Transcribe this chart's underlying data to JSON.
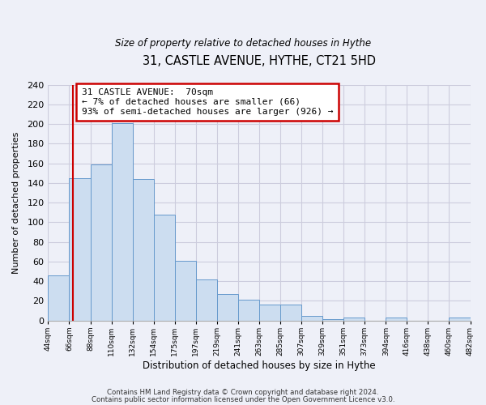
{
  "title": "31, CASTLE AVENUE, HYTHE, CT21 5HD",
  "subtitle": "Size of property relative to detached houses in Hythe",
  "xlabel": "Distribution of detached houses by size in Hythe",
  "ylabel": "Number of detached properties",
  "bin_labels": [
    "44sqm",
    "66sqm",
    "88sqm",
    "110sqm",
    "132sqm",
    "154sqm",
    "175sqm",
    "197sqm",
    "219sqm",
    "241sqm",
    "263sqm",
    "285sqm",
    "307sqm",
    "329sqm",
    "351sqm",
    "373sqm",
    "394sqm",
    "416sqm",
    "438sqm",
    "460sqm",
    "482sqm"
  ],
  "bar_heights": [
    46,
    145,
    159,
    201,
    144,
    108,
    61,
    42,
    27,
    21,
    16,
    16,
    5,
    1,
    3,
    0,
    3,
    0,
    0,
    3
  ],
  "bar_color": "#ccddf0",
  "bar_edge_color": "#6699cc",
  "vline_color": "#cc0000",
  "annotation_title": "31 CASTLE AVENUE:  70sqm",
  "annotation_line1": "← 7% of detached houses are smaller (66)",
  "annotation_line2": "93% of semi-detached houses are larger (926) →",
  "annotation_box_color": "#ffffff",
  "annotation_box_edge": "#cc0000",
  "ylim": [
    0,
    240
  ],
  "yticks": [
    0,
    20,
    40,
    60,
    80,
    100,
    120,
    140,
    160,
    180,
    200,
    220,
    240
  ],
  "footer1": "Contains HM Land Registry data © Crown copyright and database right 2024.",
  "footer2": "Contains public sector information licensed under the Open Government Licence v3.0.",
  "grid_color": "#ccccdd",
  "background_color": "#eef0f8"
}
